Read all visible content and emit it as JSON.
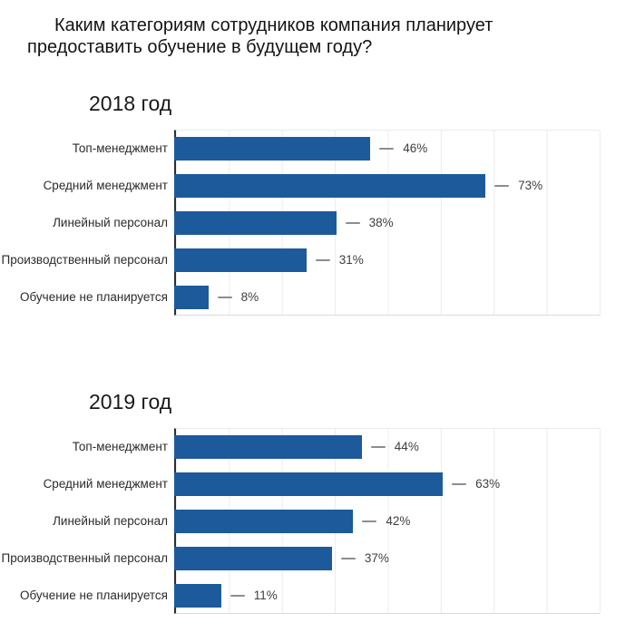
{
  "header": {
    "title": "Каким категориям сотрудников компания планирует предоставить обучение в будущем году?"
  },
  "colors": {
    "bar": "#1d5a9c",
    "axis": "#2e2e2e",
    "gridline": "#ececec",
    "dash": "#8d8d8d",
    "value_text": "#3f3f3f",
    "label_text": "#2b2b2b"
  },
  "chart_data": [
    {
      "type": "bar",
      "orientation": "horizontal",
      "title": "2018 год",
      "categories": [
        "Топ-менеджмент",
        "Средний менеджмент",
        "Линейный персонал",
        "Производственный персонал",
        "Обучение не планируется"
      ],
      "values": [
        46,
        73,
        38,
        31,
        8
      ],
      "value_labels": [
        "46%",
        "73%",
        "38%",
        "31%",
        "8%"
      ],
      "unit": "%",
      "xlim": [
        0,
        100
      ],
      "grid": "vertical",
      "legend": "none",
      "bar_color": "#1d5a9c"
    },
    {
      "type": "bar",
      "orientation": "horizontal",
      "title": "2019 год",
      "categories": [
        "Топ-менеджмент",
        "Средний менеджмент",
        "Линейный персонал",
        "Производственный персонал",
        "Обучение не планируется"
      ],
      "values": [
        44,
        63,
        42,
        37,
        11
      ],
      "value_labels": [
        "44%",
        "63%",
        "42%",
        "37%",
        "11%"
      ],
      "unit": "%",
      "xlim": [
        0,
        100
      ],
      "grid": "vertical",
      "legend": "none",
      "bar_color": "#1d5a9c"
    }
  ]
}
